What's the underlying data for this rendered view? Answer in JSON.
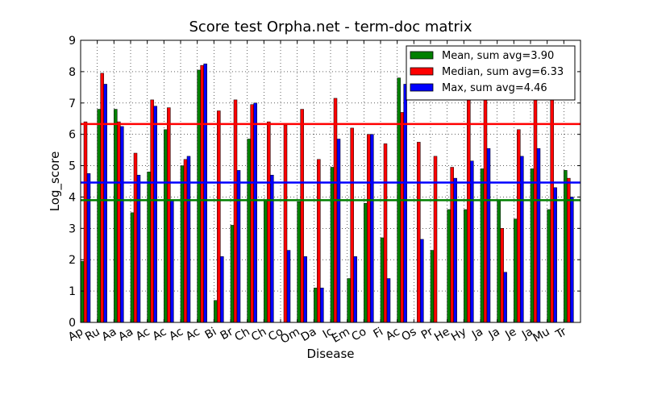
{
  "chart_data": {
    "type": "bar",
    "title": "Score test Orpha.net - term-doc matrix",
    "xlabel": "Disease",
    "ylabel": "Log_score",
    "ylim": [
      0,
      9
    ],
    "yticks": [
      0,
      1,
      2,
      3,
      4,
      5,
      6,
      7,
      8,
      9
    ],
    "grid": true,
    "legend_position": "top-right",
    "categories": [
      "Ap",
      "Ru",
      "Aa",
      "Aa",
      "Ac",
      "Ac",
      "Ac",
      "Ac",
      "Bi",
      "Br",
      "Ch",
      "Ch",
      "Co",
      "Om",
      "Da",
      "Ic",
      "Em",
      "Co",
      "Fi",
      "Ac",
      "Os",
      "Pr",
      "He",
      "Hy",
      "Ja",
      "Ja",
      "Je",
      "Ja",
      "Mu",
      "Tr"
    ],
    "series": [
      {
        "name": "Mean, sum avg=3.90",
        "color": "#008000",
        "values": [
          1.95,
          6.8,
          6.8,
          3.5,
          4.8,
          6.15,
          5.0,
          8.05,
          0.7,
          3.1,
          5.85,
          3.9,
          0.0,
          3.85,
          1.1,
          4.95,
          1.4,
          3.8,
          2.7,
          7.8,
          0.0,
          2.3,
          3.6,
          3.6,
          4.9,
          3.9,
          3.3,
          4.9,
          3.6,
          4.85
        ]
      },
      {
        "name": "Median, sum avg=6.33",
        "color": "#ff0000",
        "values": [
          6.4,
          7.95,
          6.4,
          5.4,
          7.1,
          6.85,
          5.2,
          8.2,
          6.75,
          7.1,
          6.95,
          6.4,
          6.3,
          6.8,
          5.2,
          7.15,
          6.2,
          6.0,
          5.7,
          6.7,
          5.75,
          5.3,
          4.95,
          7.3,
          7.3,
          3.0,
          6.15,
          7.3,
          7.3,
          4.6
        ]
      },
      {
        "name": "Max, sum avg=4.46",
        "color": "#0000ff",
        "values": [
          4.75,
          7.6,
          6.25,
          4.7,
          6.9,
          3.9,
          5.3,
          8.25,
          2.1,
          4.85,
          7.0,
          4.7,
          2.3,
          2.1,
          1.1,
          5.85,
          2.1,
          6.0,
          1.4,
          7.6,
          2.65,
          0.0,
          4.6,
          5.15,
          5.55,
          1.6,
          5.3,
          5.55,
          4.3,
          4.0
        ]
      }
    ],
    "reference_lines": [
      {
        "series": "Mean, sum avg=3.90",
        "value": 3.9,
        "color": "#008000"
      },
      {
        "series": "Median, sum avg=6.33",
        "value": 6.33,
        "color": "#ff0000"
      },
      {
        "series": "Max, sum avg=4.46",
        "value": 4.46,
        "color": "#0000ff"
      }
    ]
  }
}
